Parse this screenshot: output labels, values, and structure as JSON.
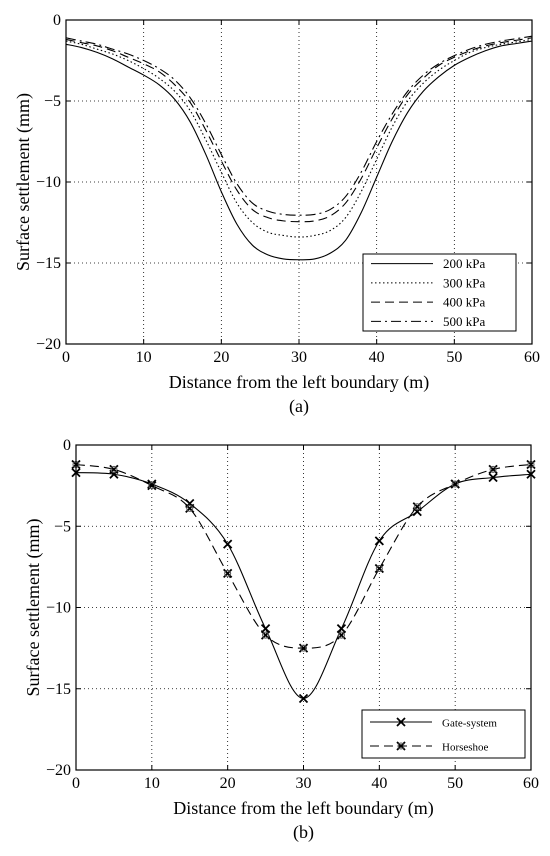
{
  "chart_data": [
    {
      "panel": "(a)",
      "type": "line",
      "xlabel": "Distance from the left boundary (m)",
      "ylabel": "Surface settlement (mm)",
      "xlim": [
        0,
        60
      ],
      "ylim": [
        -20,
        0
      ],
      "xticks": [
        0,
        10,
        20,
        30,
        40,
        50,
        60
      ],
      "yticks": [
        0,
        -5,
        -10,
        -15,
        -20
      ],
      "grid": true,
      "legend_position": "bottom-right",
      "x": [
        0,
        2,
        4,
        6,
        8,
        10,
        12,
        14,
        16,
        18,
        20,
        22,
        24,
        26,
        28,
        30,
        32,
        34,
        36,
        38,
        40,
        42,
        44,
        46,
        48,
        50,
        52,
        54,
        56,
        58,
        60
      ],
      "series": [
        {
          "name": "200 kPa",
          "style": "solid",
          "values": [
            -1.5,
            -1.7,
            -2.0,
            -2.4,
            -2.9,
            -3.4,
            -4.0,
            -4.9,
            -6.3,
            -8.3,
            -10.6,
            -12.6,
            -13.9,
            -14.5,
            -14.75,
            -14.8,
            -14.75,
            -14.4,
            -13.6,
            -11.9,
            -9.7,
            -7.5,
            -5.7,
            -4.4,
            -3.5,
            -2.8,
            -2.3,
            -1.9,
            -1.6,
            -1.45,
            -1.3
          ]
        },
        {
          "name": "300 kPa",
          "style": "dotted",
          "values": [
            -1.3,
            -1.5,
            -1.8,
            -2.1,
            -2.5,
            -3.0,
            -3.6,
            -4.4,
            -5.6,
            -7.4,
            -9.4,
            -11.3,
            -12.5,
            -13.1,
            -13.3,
            -13.4,
            -13.3,
            -13.0,
            -12.2,
            -10.6,
            -8.6,
            -6.6,
            -5.0,
            -3.9,
            -3.1,
            -2.5,
            -2.0,
            -1.7,
            -1.5,
            -1.35,
            -1.2
          ]
        },
        {
          "name": "400 kPa",
          "style": "dashed",
          "values": [
            -1.2,
            -1.4,
            -1.6,
            -1.9,
            -2.3,
            -2.7,
            -3.2,
            -4.0,
            -5.1,
            -6.8,
            -8.7,
            -10.5,
            -11.7,
            -12.2,
            -12.4,
            -12.45,
            -12.4,
            -12.1,
            -11.3,
            -9.8,
            -7.9,
            -6.1,
            -4.6,
            -3.6,
            -2.8,
            -2.3,
            -1.9,
            -1.6,
            -1.4,
            -1.25,
            -1.1
          ]
        },
        {
          "name": "500 kPa",
          "style": "dashdot",
          "values": [
            -1.1,
            -1.3,
            -1.5,
            -1.8,
            -2.1,
            -2.5,
            -3.0,
            -3.7,
            -4.8,
            -6.4,
            -8.3,
            -10.1,
            -11.3,
            -11.8,
            -12.0,
            -12.05,
            -12.0,
            -11.7,
            -10.9,
            -9.4,
            -7.5,
            -5.8,
            -4.4,
            -3.4,
            -2.7,
            -2.2,
            -1.8,
            -1.5,
            -1.3,
            -1.15,
            -1.0
          ]
        }
      ]
    },
    {
      "panel": "(b)",
      "type": "line",
      "xlabel": "Distance from the left boundary (m)",
      "ylabel": "Surface settlement (mm)",
      "xlim": [
        0,
        60
      ],
      "ylim": [
        -20,
        0
      ],
      "xticks": [
        0,
        10,
        20,
        30,
        40,
        50,
        60
      ],
      "yticks": [
        0,
        -5,
        -10,
        -15,
        -20
      ],
      "grid": true,
      "legend_position": "bottom-right",
      "series": [
        {
          "name": "Gate-system",
          "style": "solid",
          "marker": "x",
          "x": [
            0,
            5,
            10,
            15,
            20,
            25,
            30,
            35,
            40,
            45,
            50,
            55,
            60
          ],
          "values": [
            -1.7,
            -1.8,
            -2.4,
            -3.6,
            -6.1,
            -11.3,
            -15.6,
            -11.3,
            -5.9,
            -4.1,
            -2.4,
            -2.0,
            -1.8
          ]
        },
        {
          "name": "Horseshoe",
          "style": "dashed",
          "marker": "x-circle",
          "x": [
            0,
            5,
            10,
            15,
            20,
            25,
            30,
            35,
            40,
            45,
            50,
            55,
            60
          ],
          "values": [
            -1.2,
            -1.5,
            -2.5,
            -3.9,
            -7.9,
            -11.7,
            -12.5,
            -11.7,
            -7.6,
            -3.8,
            -2.4,
            -1.5,
            -1.2
          ]
        }
      ]
    }
  ]
}
